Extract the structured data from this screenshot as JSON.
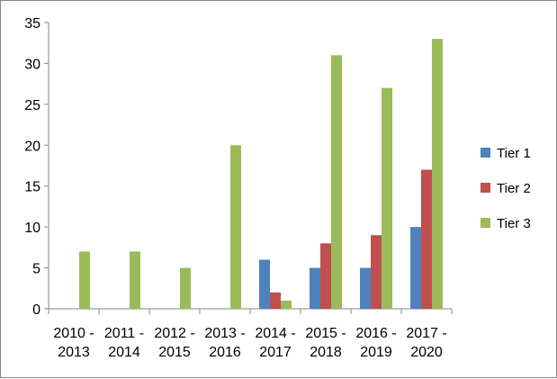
{
  "chart_data": {
    "type": "bar",
    "categories": [
      "2010 - 2013",
      "2011 - 2014",
      "2012 - 2015",
      "2013 - 2016",
      "2014 - 2017",
      "2015 - 2018",
      "2016 - 2019",
      "2017 - 2020"
    ],
    "category_lines": [
      [
        "2010 -",
        "2013"
      ],
      [
        "2011 -",
        "2014"
      ],
      [
        "2012 -",
        "2015"
      ],
      [
        "2013 -",
        "2016"
      ],
      [
        "2014 -",
        "2017"
      ],
      [
        "2015 -",
        "2018"
      ],
      [
        "2016 -",
        "2019"
      ],
      [
        "2017 -",
        "2020"
      ]
    ],
    "series": [
      {
        "name": "Tier 1",
        "color": "#4f81bd",
        "values": [
          0,
          0,
          0,
          0,
          6,
          5,
          5,
          10
        ]
      },
      {
        "name": "Tier 2",
        "color": "#c0504d",
        "values": [
          0,
          0,
          0,
          0,
          2,
          8,
          9,
          17
        ]
      },
      {
        "name": "Tier 3",
        "color": "#9bbb59",
        "values": [
          7,
          7,
          5,
          20,
          1,
          31,
          27,
          33
        ]
      }
    ],
    "ylim": [
      0,
      35
    ],
    "yticks": [
      0,
      5,
      10,
      15,
      20,
      25,
      30,
      35
    ],
    "grid": false,
    "legend": "right",
    "title": "",
    "xlabel": "",
    "ylabel": ""
  }
}
